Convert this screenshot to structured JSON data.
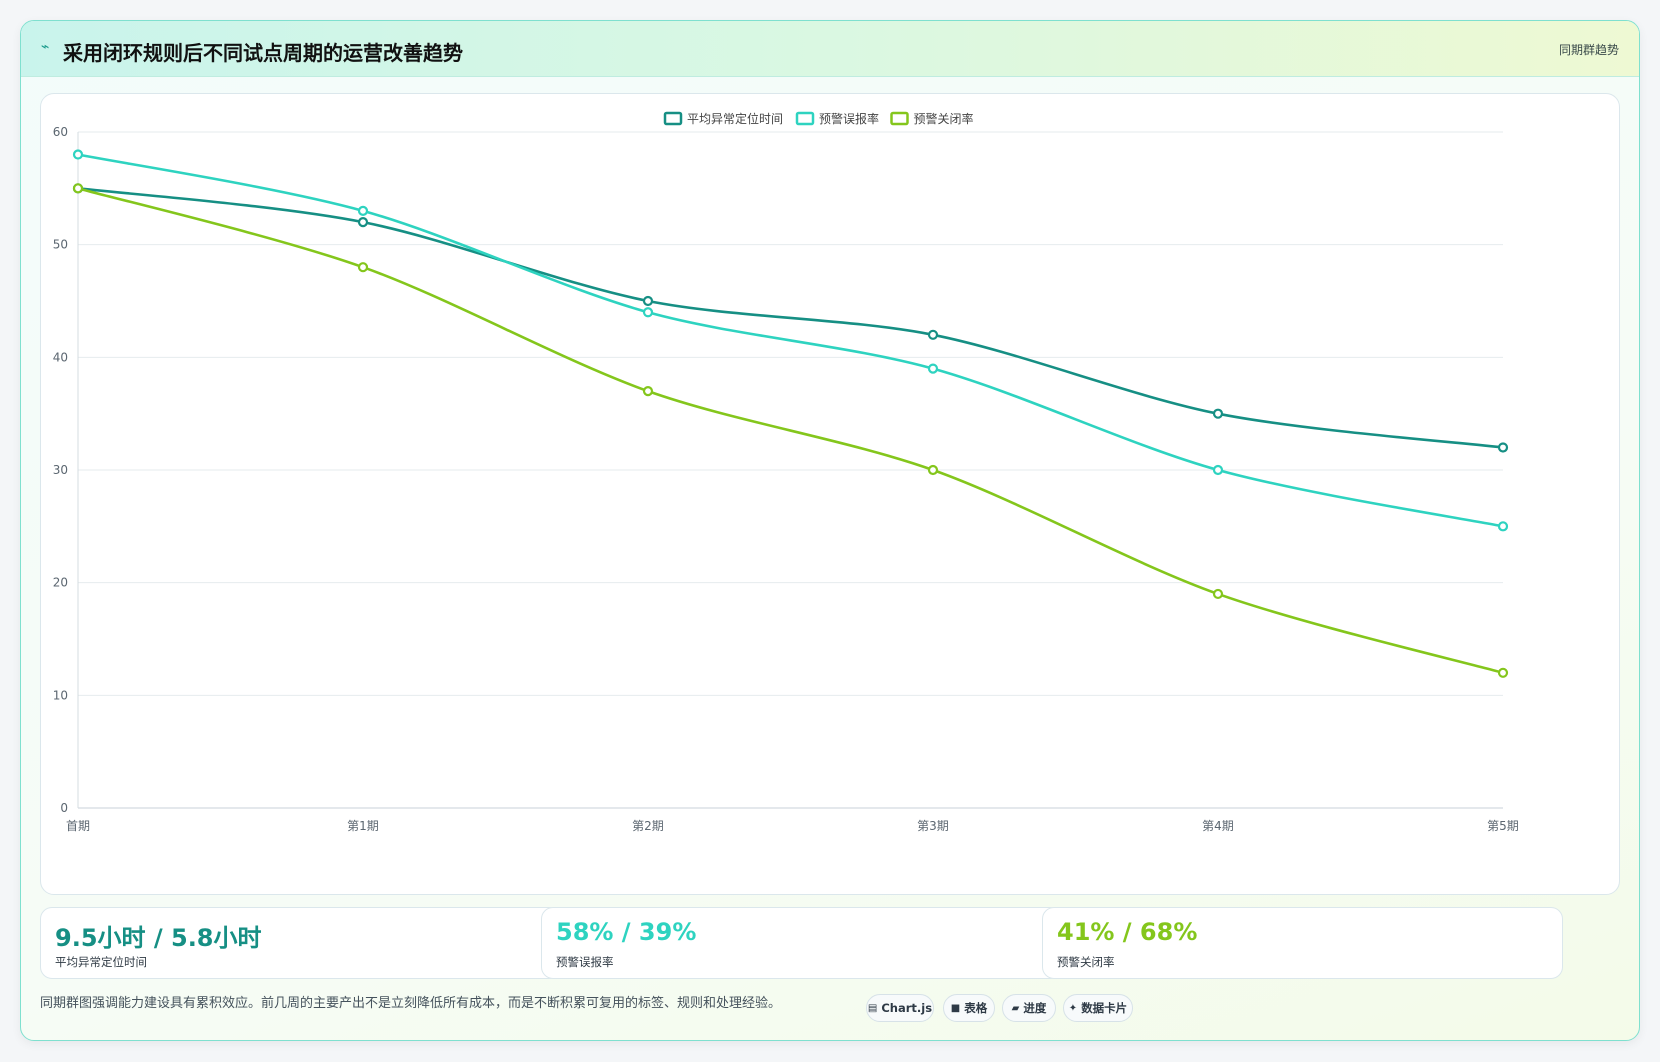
{
  "header": {
    "icon": "trend-icon",
    "title": "采用闭环规则后不同试点周期的运营改善趋势",
    "tag": "同期群趋势"
  },
  "chart_data": {
    "type": "line",
    "categories": [
      "首期",
      "第1期",
      "第2期",
      "第3期",
      "第4期",
      "第5期"
    ],
    "series": [
      {
        "name": "平均异常定位时间",
        "color": "#168f84",
        "values": [
          55,
          52,
          45,
          42,
          35,
          32
        ]
      },
      {
        "name": "预警误报率",
        "color": "#2ed3c0",
        "values": [
          58,
          53,
          44,
          39,
          30,
          25
        ]
      },
      {
        "name": "预警关闭率",
        "color": "#84c61c",
        "values": [
          55,
          48,
          37,
          30,
          19,
          12
        ]
      }
    ],
    "ylim": [
      0,
      60
    ],
    "yticks": [
      0,
      10,
      20,
      30,
      40,
      50,
      60
    ],
    "grid": true,
    "legend_position": "top-center"
  },
  "stats": [
    {
      "value": "9.5小时 / 5.8小时",
      "label": "平均异常定位时间",
      "color": "#168f84"
    },
    {
      "value": "58% / 39%",
      "label": "预警误报率",
      "color": "#2ed3c0"
    },
    {
      "value": "41% / 68%",
      "label": "预警关闭率",
      "color": "#84c61c"
    }
  ],
  "footnote": "同期群图强调能力建设具有累积效应。前几周的主要产出不是立刻降低所有成本，而是不断积累可复用的标签、规则和处理经验。",
  "chips": [
    {
      "icon": "chart-icon",
      "glyph": "▤",
      "label": "Chart.js"
    },
    {
      "icon": "table-icon",
      "glyph": "■",
      "label": "表格"
    },
    {
      "icon": "progress-icon",
      "glyph": "▰",
      "label": "进度"
    },
    {
      "icon": "sparkle-icon",
      "glyph": "✦",
      "label": "数据卡片"
    }
  ]
}
